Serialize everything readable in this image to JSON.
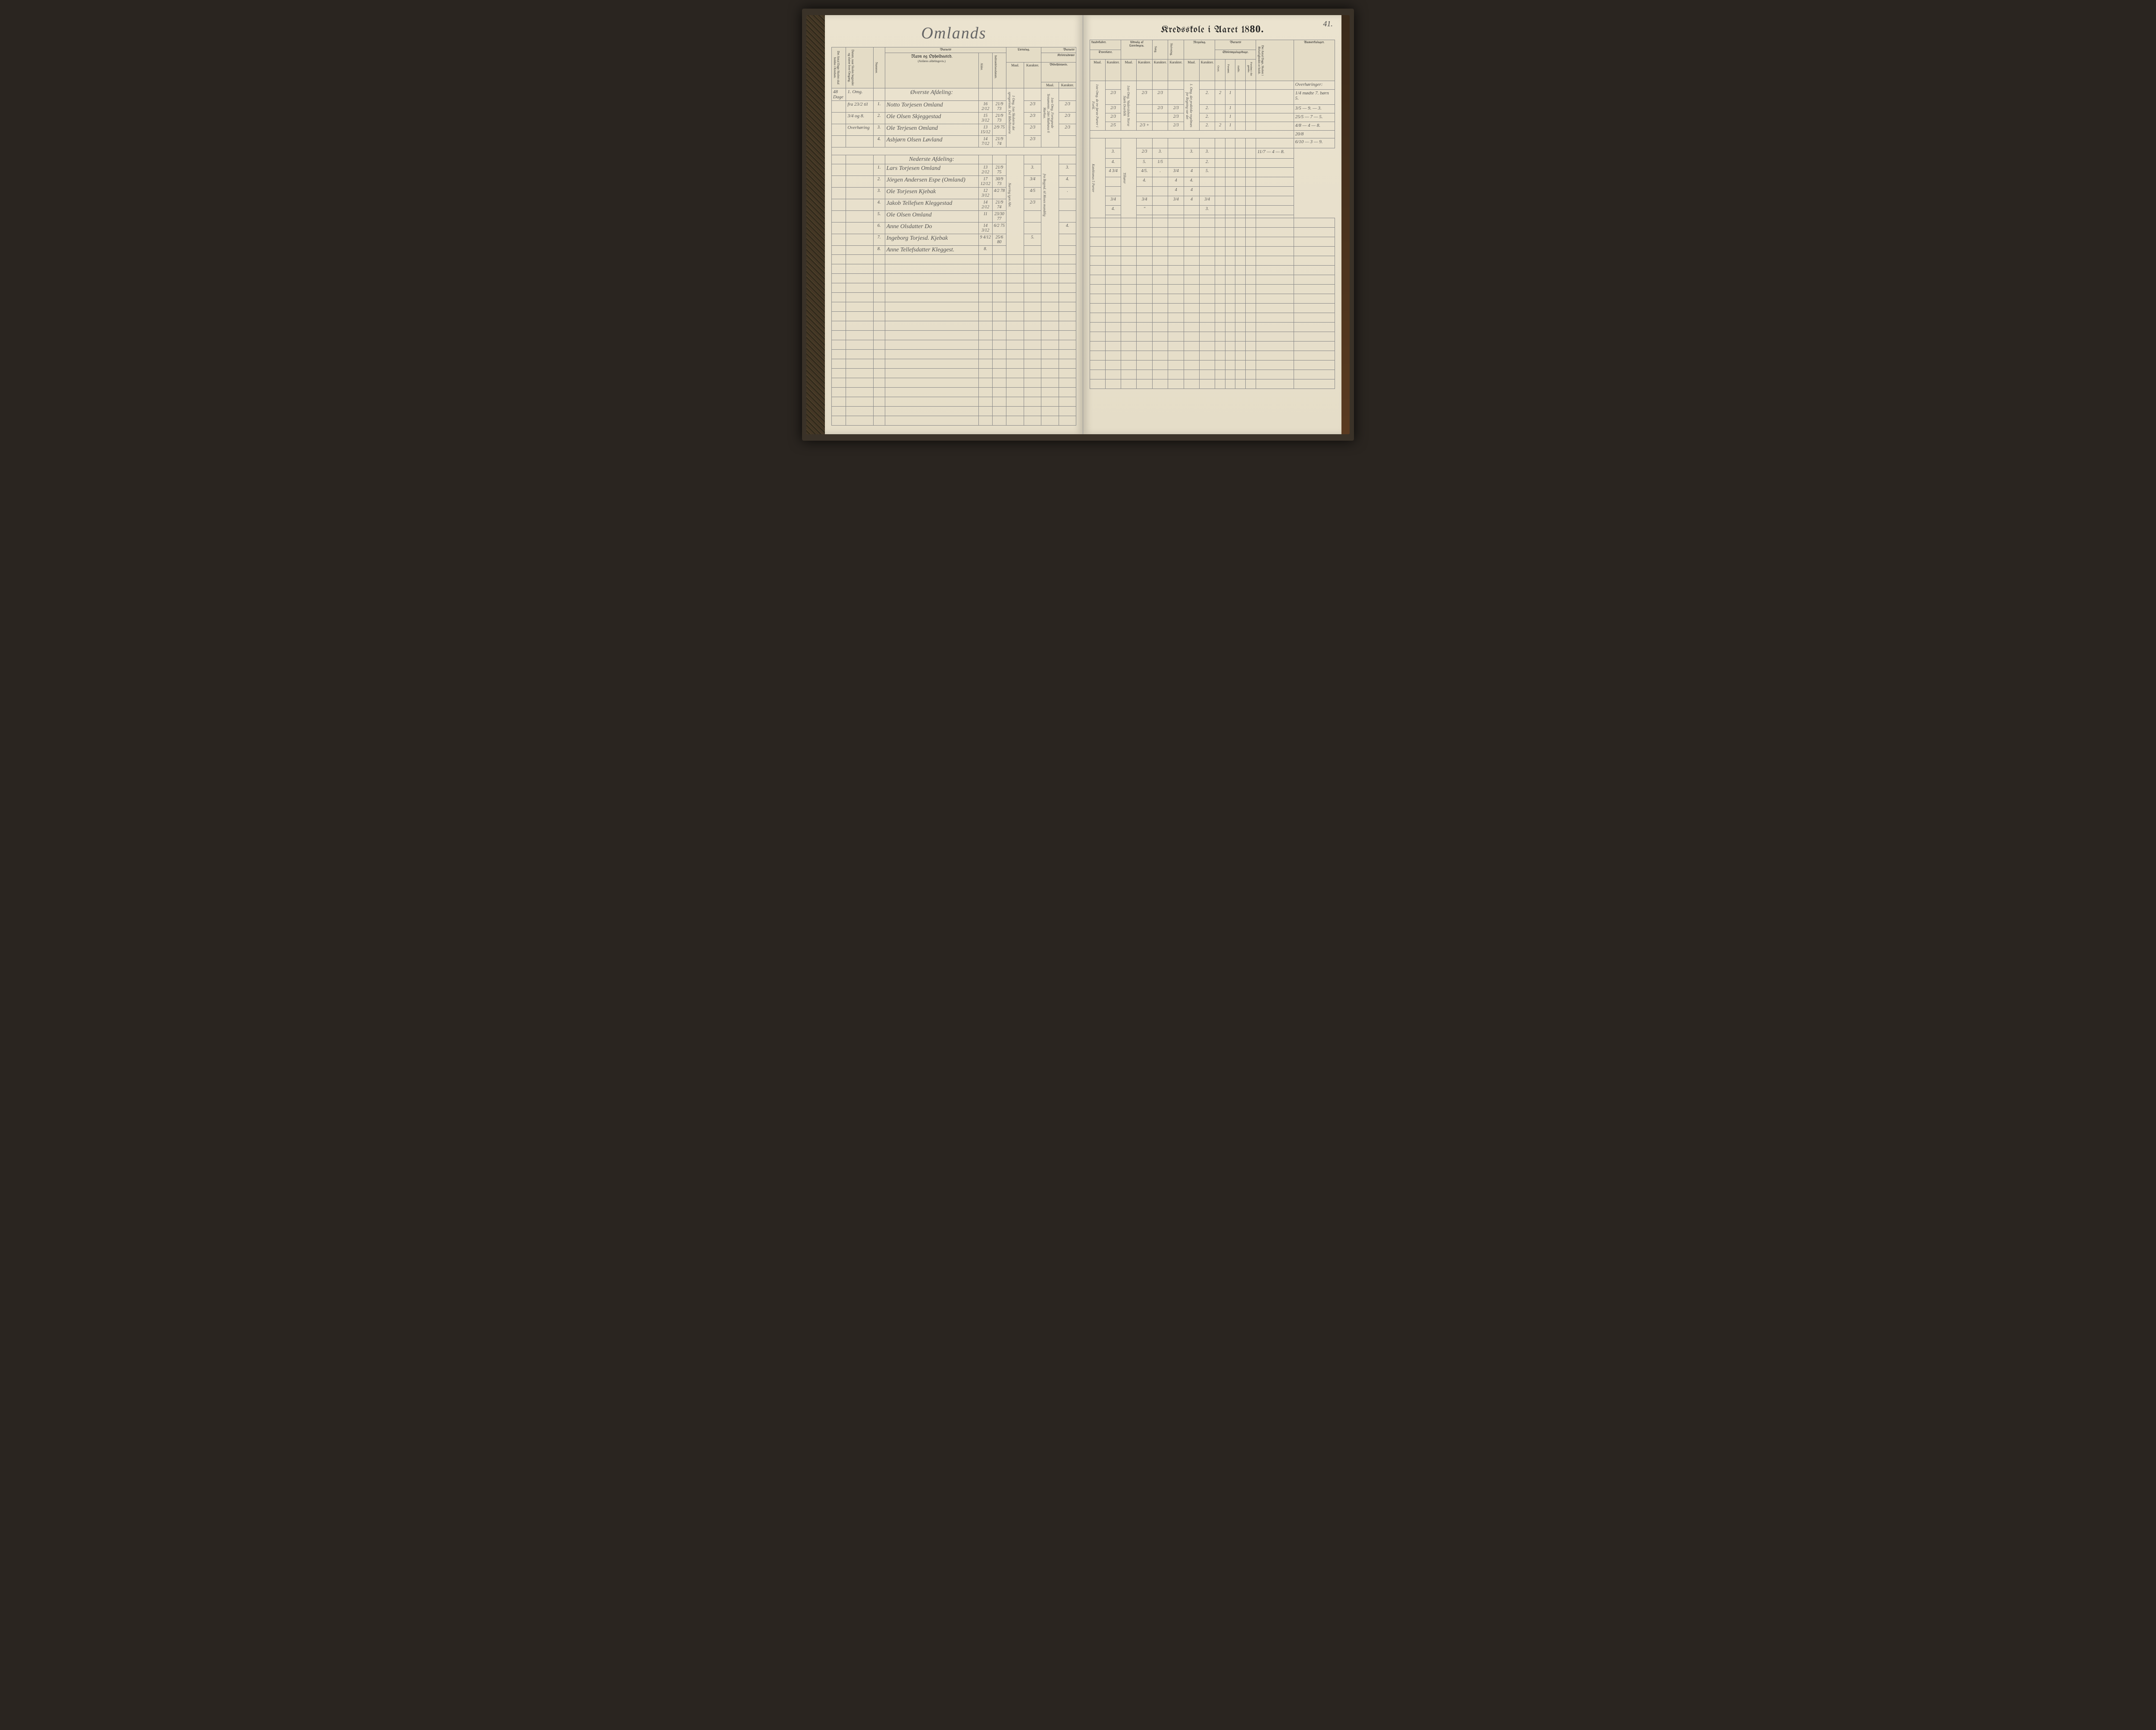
{
  "pageNumber": "41.",
  "leftTitle": "Omlands",
  "rightTitlePrefix": "Kredsskole i Aaret 18",
  "rightTitleYear": "80.",
  "headers": {
    "leftGroup1": "Det Antal Dage Skolen skal holdes i Kredsen.",
    "leftGroup2": "Datum, naar Skolen begynder og slutter hver Omgang.",
    "nummer": "Nummer.",
    "barnets": "Barnets",
    "navn": "Navn og Opholdssted.",
    "navnSub": "(Anføres afdelingsvis.)",
    "alder": "Alder.",
    "indtr": "Indtrædelsesdatum.",
    "laesning": "Læsning.",
    "kristendoms": "Kristendoms",
    "bibel": "Bibelhistorie.",
    "maal": "Maal.",
    "karakter": "Karakter.",
    "kundskaber": "kundskaber.",
    "troes": "Troeslære.",
    "udvalg": "Udvalg af Læsebogen.",
    "sang": "Sang.",
    "skriv": "Skrivning.",
    "regning": "Regning.",
    "skolesog": "Skolesøgningsdage.",
    "antalDage": "Det Antal Dage, Skolen i Birkeligheden er holdt.",
    "anm": "Anmærkninger."
  },
  "sideLabel1": "48 Dage",
  "sideLabel2": "1. Omg.",
  "sideLabel3": "fra 23/2 til",
  "sideLabel4": "3/4 og 8.",
  "sideLabel5": "Overhøring",
  "section1": "Øverste Afdeling:",
  "section2": "Nederste Afdeling:",
  "upper": [
    {
      "n": "1.",
      "name": "Notto Torjesen Omland",
      "a": "16 2/12",
      "d": "21/9 73",
      "l1": "1/3",
      "l2": "2/3",
      "b1": "",
      "b2": "2/3",
      "t1": "2/3",
      "t2": "",
      "u1": "2/3",
      "u2": "",
      "s": "2/3",
      "sk": "",
      "r1": "2.",
      "r2": "2",
      "sd1": "1",
      "sd2": "",
      "sd3": "",
      "sd4": ""
    },
    {
      "n": "2.",
      "name": "Ole Olsen Skjeggestad",
      "a": "15 3/12",
      "d": "21/9 73",
      "l1": "2/3",
      "l2": "2/3",
      "b1": "",
      "b2": "2/3",
      "t1": "2/3",
      "t2": "",
      "u1": "",
      "u2": "",
      "s": "2/3",
      "sk": "2/3",
      "r1": "2.",
      "r2": "",
      "sd1": "1",
      "sd2": "",
      "sd3": "",
      "sd4": ""
    },
    {
      "n": "3.",
      "name": "Ole Terjesen Omland",
      "a": "13 15/12",
      "d": "2/9 75",
      "l1": "",
      "l2": "2/3",
      "b1": "",
      "b2": "2/3",
      "t1": "2/3",
      "t2": "",
      "u1": "",
      "u2": "2/3",
      "s": "",
      "sk": "2/3",
      "r1": "2.",
      "r2": "",
      "sd1": "1",
      "sd2": "",
      "sd3": "",
      "sd4": ""
    },
    {
      "n": "4.",
      "name": "Asbjørn Olsen Løvland",
      "a": "14 7/12",
      "d": "21/9 74",
      "l1": "",
      "l2": "2/3",
      "b1": "",
      "b2": "",
      "t1": "2/5",
      "t2": "",
      "u1": "2/3 +",
      "u2": "",
      "s": "",
      "sk": "2/3",
      "r1": "2.",
      "r2": "2",
      "sd1": "1",
      "sd2": "",
      "sd3": "",
      "sd4": ""
    }
  ],
  "lower": [
    {
      "n": "1.",
      "name": "Lars Torjesen Omland",
      "a": "13 2/12",
      "d": "21/9 75",
      "l1": "",
      "l2": "3.",
      "b1": "",
      "b2": "3.",
      "t1": "",
      "t2": "3.",
      "u1": "",
      "u2": "2/3",
      "s": "3.",
      "sk": "",
      "r1": "3.",
      "r2": "3.",
      "sd1": "",
      "sd2": "",
      "sd3": "",
      "sd4": ""
    },
    {
      "n": "2.",
      "name": "Jörgen Andersen Espe (Omland)",
      "a": "17 12/12",
      "d": "30/9 73",
      "l1": "",
      "l2": "3/4",
      "b1": "",
      "b2": "4.",
      "t1": "",
      "t2": "4.",
      "u1": "",
      "u2": "5.",
      "s": "1/5",
      "sk": "",
      "r1": "",
      "r2": "2.",
      "sd1": "",
      "sd2": "",
      "sd3": "",
      "sd4": ""
    },
    {
      "n": "3.",
      "name": "Ole Torjesen Kjebak",
      "a": "12 3/12",
      "d": "4/2 78",
      "l1": "",
      "l2": "4/5",
      "b1": "",
      "b2": ".",
      "t1": "",
      "t2": "4 3/4",
      "u1": "Tilhører",
      "u2": "4/5.",
      "s": ".",
      "sk": "3/4",
      "r1": "4",
      "r2": "5.",
      "sd1": "",
      "sd2": "",
      "sd3": "",
      "sd4": ""
    },
    {
      "n": "4.",
      "name": "Jakob Tellefsen Kleggestad",
      "a": "14 2/12",
      "d": "21/9 74",
      "l1": "",
      "l2": "2/3",
      "b1": "",
      "b2": "",
      "t1": "",
      "t2": "",
      "u1": "",
      "u2": "4.",
      "s": "",
      "sk": "4",
      "r1": "4.",
      "r2": "",
      "sd1": "",
      "sd2": "",
      "sd3": "",
      "sd4": ""
    },
    {
      "n": "5.",
      "name": "Ole Olsen Omland",
      "a": "11",
      "d": "23/30 77",
      "l1": "",
      "l2": "",
      "b1": "",
      "b2": "",
      "t1": "",
      "t2": "",
      "u1": "",
      "u2": "",
      "s": "",
      "sk": "4",
      "r1": "4",
      "r2": "",
      "sd1": "",
      "sd2": "",
      "sd3": "",
      "sd4": ""
    },
    {
      "n": "6.",
      "name": "Anne Olsdatter Do",
      "a": "14 3/12",
      "d": "6/2 75",
      "l1": "",
      "l2": "",
      "b1": "",
      "b2": "4.",
      "t1": "",
      "t2": "3/4",
      "u1": "",
      "u2": "3/4",
      "s": "",
      "sk": "3/4",
      "r1": "4",
      "r2": "3/4",
      "sd1": "",
      "sd2": "",
      "sd3": "",
      "sd4": ""
    },
    {
      "n": "7.",
      "name": "Ingeborg Torjesd. Kjebak",
      "a": "9 4/12",
      "d": "25/6 80",
      "l1": "",
      "l2": "5.",
      "b1": "",
      "b2": "",
      "t1": "",
      "t2": "4.",
      "u1": "",
      "u2": "\"",
      "s": "",
      "sk": "",
      "r1": "",
      "r2": "3.",
      "sd1": "",
      "sd2": "",
      "sd3": "",
      "sd4": ""
    },
    {
      "n": "8.",
      "name": "Anne Tellefsdatter Kleggest.",
      "a": "8.",
      "d": "",
      "l1": "",
      "l2": "",
      "b1": "",
      "b2": "",
      "t1": "",
      "t2": "",
      "u1": "",
      "u2": "",
      "s": "",
      "sk": "",
      "r1": "",
      "r2": "",
      "sd1": "",
      "sd2": "",
      "sd3": "",
      "sd4": ""
    }
  ],
  "remarks": {
    "head": "Overhøringer:",
    "lines": [
      "1/4 mødte 7. børn 5.",
      "3/5 — 9. — 3.",
      "25/5 — 7 — 5.",
      "4/8 — 4 — 8.",
      "20/8",
      "6/10 — 3 — 9.",
      "11/7 — 4 — 8."
    ]
  },
  "leftMargin1": "1 Omg. 1ste Skoletrin det sprogartede. Del Bibelhistorie",
  "rightMarginBib": "1ste Omg. Fortegnede Testamente. 2det Mathæus 6 Markus.",
  "rightMarginTroes": "1ste Omg. de tre første Parter i Forkl.",
  "rightMarginUdv": "1ste Omg. Vadersleben Norse Størk Overblik",
  "rightMarginReg": "1. Omg. det praktiske regelmæs for Regning var det"
}
